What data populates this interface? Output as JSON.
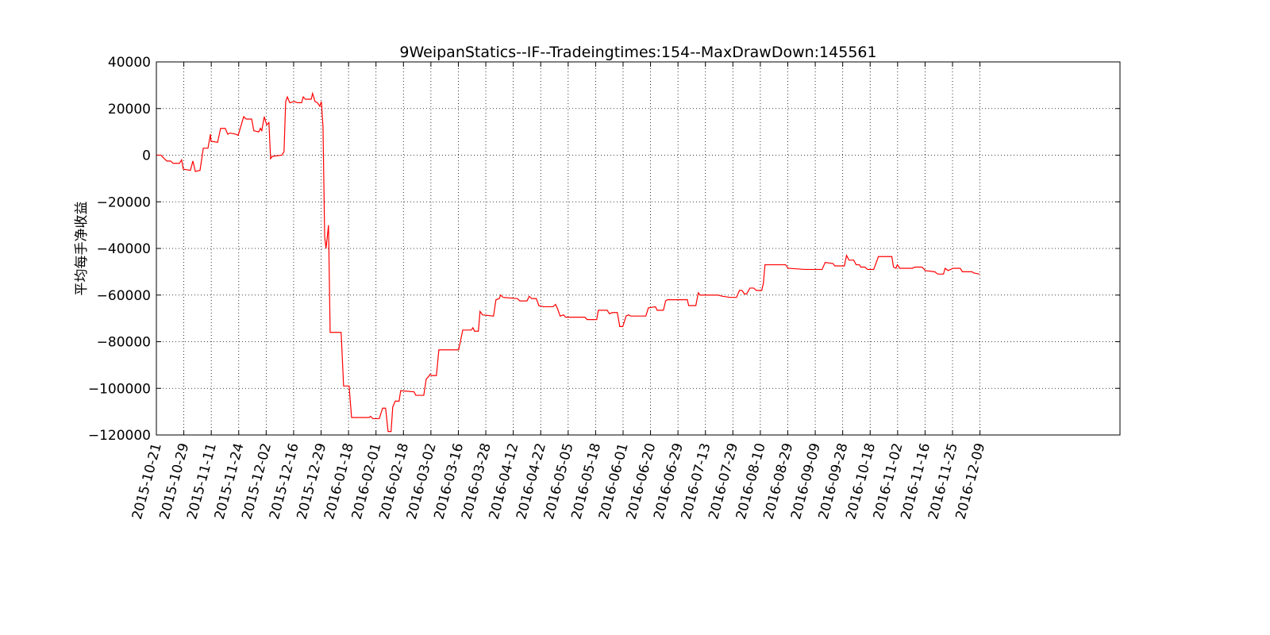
{
  "chart_data": {
    "type": "line",
    "title": "9WeipanStatics--IF--Tradeingtimes:154--MaxDrawDown:145561",
    "y_label": "平均每手净收益",
    "x": [
      0,
      1.7,
      2.9,
      3.8,
      5.2,
      6.1,
      8.4,
      9.2,
      9.8,
      12.4,
      13.3,
      14.2,
      15.9,
      17.1,
      18.8,
      19.7,
      19.9,
      22.3,
      23.4,
      25.1,
      26.0,
      26.9,
      28.9,
      29.8,
      31.8,
      32.7,
      34.7,
      35.5,
      37.3,
      37.9,
      38.4,
      39.3,
      40.2,
      41.0,
      41.6,
      42.2,
      45.7,
      46.5,
      47.1,
      47.7,
      48.6,
      50.3,
      51.4,
      52.9,
      53.5,
      54.3,
      56.4,
      56.9,
      57.8,
      58.7,
      59.5,
      60.1,
      60.7,
      61.3,
      61.8,
      62.7,
      63.3,
      67.3,
      68.2,
      70.2,
      71.1,
      77.5,
      78.0,
      78.9,
      81.2,
      82.4,
      83.5,
      84.4,
      85.5,
      86.1,
      87.0,
      88.4,
      89.0,
      93.9,
      94.5,
      97.4,
      98.3,
      99.1,
      99.7,
      100.3,
      102.0,
      102.9,
      110.1,
      111.6,
      114.7,
      115.3,
      115.9,
      117.3,
      117.9,
      118.8,
      122.8,
      123.7,
      124.9,
      125.4,
      126.3,
      131.5,
      132.4,
      135.0,
      135.8,
      136.7,
      138.4,
      139.3,
      141.0,
      144.5,
      145.4,
      146.0,
      147.1,
      148.3,
      149.1,
      156.1,
      156.9,
      160.4,
      161.0,
      164.2,
      165.0,
      166.2,
      167.9,
      168.8,
      169.9,
      171.1,
      172.0,
      172.8,
      178.3,
      179.2,
      181.8,
      182.4,
      184.7,
      185.5,
      186.1,
      193.4,
      193.9,
      196.5,
      197.4,
      198.0,
      204.6,
      206.1,
      209.0,
      211.3,
      212.4,
      213.3,
      214.2,
      215.0,
      216.2,
      217.6,
      218.5,
      220.5,
      221.1,
      221.7,
      229.2,
      230.1,
      236.1,
      242.5,
      243.6,
      246.5,
      247.1,
      250.6,
      251.4,
      252.3,
      254.0,
      254.9,
      256.1,
      256.6,
      258.1,
      259.0,
      261.3,
      263.0,
      267.9,
      268.5,
      269.4,
      269.9,
      270.8,
      275.4,
      276.3,
      278.9,
      280.1,
      283.5,
      284.7,
      286.7,
      287.3,
      288.4,
      290.2,
      292.8,
      293.6,
      297.1,
      297.7,
      299.8
    ],
    "series": [
      {
        "color": "#ff0000",
        "values": [
          0,
          0,
          -1500,
          -2500,
          -2500,
          -3500,
          -3500,
          -2000,
          -6000,
          -6500,
          -2500,
          -7000,
          -6500,
          3000,
          3000,
          9000,
          6000,
          5500,
          11500,
          11500,
          9000,
          9500,
          9000,
          8500,
          16500,
          15500,
          15500,
          10500,
          10000,
          11500,
          10500,
          16500,
          13000,
          14000,
          -1500,
          -500,
          0,
          1500,
          23000,
          25000,
          22500,
          23000,
          22500,
          22500,
          25000,
          24000,
          24000,
          26500,
          23000,
          22500,
          21000,
          23000,
          12000,
          -35000,
          -40000,
          -30000,
          -76000,
          -76000,
          -99000,
          -99000,
          -112500,
          -112500,
          -112000,
          -113000,
          -113000,
          -108500,
          -108500,
          -118500,
          -118500,
          -108000,
          -105500,
          -105500,
          -101000,
          -101500,
          -103000,
          -103000,
          -96000,
          -95000,
          -94000,
          -94500,
          -94500,
          -83500,
          -83500,
          -75000,
          -75000,
          -74000,
          -75500,
          -75500,
          -67000,
          -68500,
          -69000,
          -62000,
          -61500,
          -60000,
          -61000,
          -61500,
          -62500,
          -62500,
          -60500,
          -61500,
          -61500,
          -64500,
          -65000,
          -65000,
          -64000,
          -65500,
          -69000,
          -68500,
          -69500,
          -69500,
          -70500,
          -70500,
          -66500,
          -66500,
          -68000,
          -67500,
          -67500,
          -73500,
          -73500,
          -69000,
          -68500,
          -69000,
          -69000,
          -65500,
          -65000,
          -66500,
          -66500,
          -62500,
          -62000,
          -62000,
          -64500,
          -64500,
          -59000,
          -60000,
          -60000,
          -60500,
          -61000,
          -61000,
          -58000,
          -58000,
          -59500,
          -59500,
          -57000,
          -57000,
          -58000,
          -58000,
          -55000,
          -47000,
          -47000,
          -48500,
          -49000,
          -49000,
          -46000,
          -46500,
          -47500,
          -47500,
          -43000,
          -45000,
          -45000,
          -47000,
          -47000,
          -48000,
          -48000,
          -49000,
          -49000,
          -43500,
          -43500,
          -48000,
          -48500,
          -47000,
          -48500,
          -48500,
          -48000,
          -48000,
          -49500,
          -50000,
          -51000,
          -51000,
          -48500,
          -49500,
          -48500,
          -48500,
          -50000,
          -50000,
          -50500,
          -51000
        ]
      }
    ],
    "xlim": [
      0,
      351
    ],
    "xticks": [
      {
        "value": 0,
        "label": "2015-10-21"
      },
      {
        "value": 10,
        "label": "2015-10-29"
      },
      {
        "value": 20,
        "label": "2015-11-11"
      },
      {
        "value": 30,
        "label": "2015-11-24"
      },
      {
        "value": 40,
        "label": "2015-12-02"
      },
      {
        "value": 50,
        "label": "2015-12-16"
      },
      {
        "value": 60,
        "label": "2015-12-29"
      },
      {
        "value": 70,
        "label": "2016-01-18"
      },
      {
        "value": 80,
        "label": "2016-02-01"
      },
      {
        "value": 90,
        "label": "2016-02-18"
      },
      {
        "value": 100,
        "label": "2016-03-02"
      },
      {
        "value": 110,
        "label": "2016-03-16"
      },
      {
        "value": 120,
        "label": "2016-03-28"
      },
      {
        "value": 130,
        "label": "2016-04-12"
      },
      {
        "value": 140,
        "label": "2016-04-22"
      },
      {
        "value": 150,
        "label": "2016-05-05"
      },
      {
        "value": 160,
        "label": "2016-05-18"
      },
      {
        "value": 170,
        "label": "2016-06-01"
      },
      {
        "value": 180,
        "label": "2016-06-20"
      },
      {
        "value": 190,
        "label": "2016-06-29"
      },
      {
        "value": 200,
        "label": "2016-07-13"
      },
      {
        "value": 210,
        "label": "2016-07-29"
      },
      {
        "value": 220,
        "label": "2016-08-10"
      },
      {
        "value": 230,
        "label": "2016-08-29"
      },
      {
        "value": 240,
        "label": "2016-09-09"
      },
      {
        "value": 250,
        "label": "2016-09-28"
      },
      {
        "value": 260,
        "label": "2016-10-18"
      },
      {
        "value": 270,
        "label": "2016-11-02"
      },
      {
        "value": 280,
        "label": "2016-11-16"
      },
      {
        "value": 290,
        "label": "2016-11-25"
      },
      {
        "value": 300,
        "label": "2016-12-09"
      }
    ],
    "ylim": [
      -120000,
      40000
    ],
    "yticks": [
      {
        "value": -120000,
        "label": "−120000"
      },
      {
        "value": -100000,
        "label": "−100000"
      },
      {
        "value": -80000,
        "label": "−80000"
      },
      {
        "value": -60000,
        "label": "−60000"
      },
      {
        "value": -40000,
        "label": "−40000"
      },
      {
        "value": -20000,
        "label": "−20000"
      },
      0,
      20000,
      40000
    ],
    "grid": true
  }
}
